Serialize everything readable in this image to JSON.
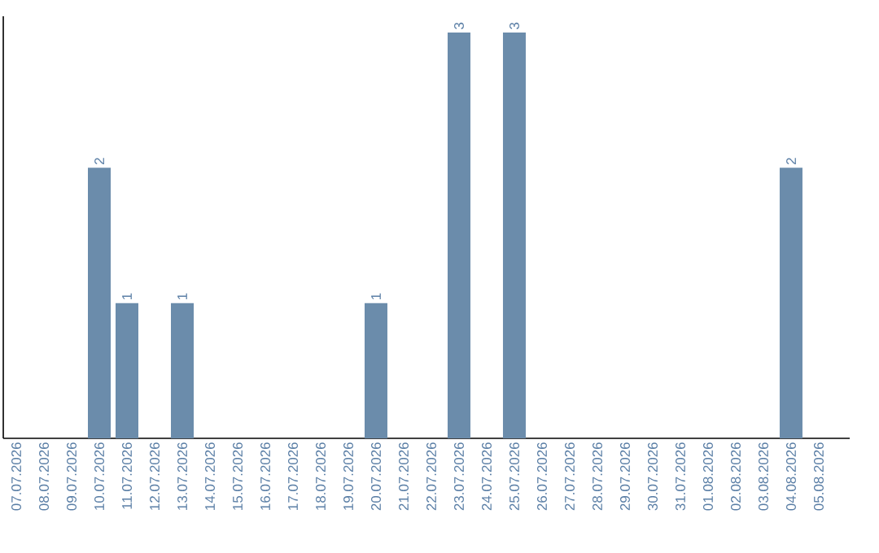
{
  "chart_data": {
    "type": "bar",
    "categories": [
      "07.07.2026",
      "08.07.2026",
      "09.07.2026",
      "10.07.2026",
      "11.07.2026",
      "12.07.2026",
      "13.07.2026",
      "14.07.2026",
      "15.07.2026",
      "16.07.2026",
      "17.07.2026",
      "18.07.2026",
      "19.07.2026",
      "20.07.2026",
      "21.07.2026",
      "22.07.2026",
      "23.07.2026",
      "24.07.2026",
      "25.07.2026",
      "26.07.2026",
      "27.07.2026",
      "28.07.2026",
      "29.07.2026",
      "30.07.2026",
      "31.07.2026",
      "01.08.2026",
      "02.08.2026",
      "03.08.2026",
      "04.08.2026",
      "05.08.2026"
    ],
    "values": [
      0,
      0,
      0,
      2,
      1,
      0,
      1,
      0,
      0,
      0,
      0,
      0,
      0,
      1,
      0,
      0,
      3,
      0,
      3,
      0,
      0,
      0,
      0,
      0,
      0,
      0,
      0,
      0,
      2,
      0
    ],
    "value_labels": [
      null,
      null,
      null,
      "2",
      "1",
      null,
      "1",
      null,
      null,
      null,
      null,
      null,
      null,
      "1",
      null,
      null,
      "3",
      null,
      "3",
      null,
      null,
      null,
      null,
      null,
      null,
      null,
      null,
      null,
      "2",
      null
    ],
    "color": "#6b8cab",
    "ylim": [
      0,
      3.12
    ],
    "tick_labels": "x"
  }
}
